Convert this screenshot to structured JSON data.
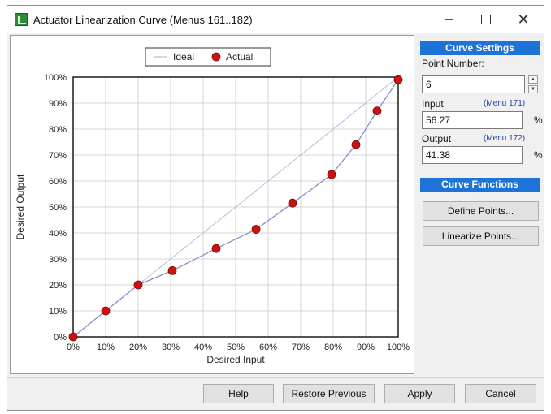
{
  "window": {
    "title": "Actuator Linearization Curve (Menus 161..182)",
    "controls": {
      "close_glyph": "✕"
    }
  },
  "chart_data": {
    "type": "line",
    "xlabel": "Desired Input",
    "ylabel": "Desired Output",
    "xlim": [
      0,
      100
    ],
    "ylim": [
      0,
      100
    ],
    "x_ticks": [
      "0%",
      "10%",
      "20%",
      "30%",
      "40%",
      "50%",
      "60%",
      "70%",
      "80%",
      "90%",
      "100%"
    ],
    "y_ticks": [
      "0%",
      "10%",
      "20%",
      "30%",
      "40%",
      "50%",
      "60%",
      "70%",
      "80%",
      "90%",
      "100%"
    ],
    "grid": true,
    "legend_position": "top-center",
    "series": [
      {
        "name": "Ideal",
        "color": "#b4bcd8",
        "marker": "none",
        "x": [
          0,
          100
        ],
        "y": [
          0,
          100
        ]
      },
      {
        "name": "Actual",
        "color": "#8890c8",
        "marker_color": "#cc1111",
        "x": [
          0,
          10,
          20,
          30.5,
          44,
          56.27,
          67.5,
          79.5,
          87,
          93.5,
          100
        ],
        "y": [
          0,
          10,
          20,
          25.5,
          34,
          41.38,
          51.5,
          62.5,
          74,
          87,
          99
        ]
      }
    ]
  },
  "curve_settings": {
    "header": "Curve Settings",
    "point_number_label": "Point Number:",
    "point_number_value": "6",
    "input_label": "Input",
    "input_menu_ref": "(Menu 171)",
    "input_value": "56.27",
    "input_unit": "%",
    "output_label": "Output",
    "output_menu_ref": "(Menu 172)",
    "output_value": "41.38",
    "output_unit": "%"
  },
  "curve_functions": {
    "header": "Curve Functions",
    "define_button": "Define Points...",
    "linearize_button": "Linearize Points..."
  },
  "footer": {
    "help": "Help",
    "restore": "Restore Previous",
    "apply": "Apply",
    "cancel": "Cancel"
  }
}
